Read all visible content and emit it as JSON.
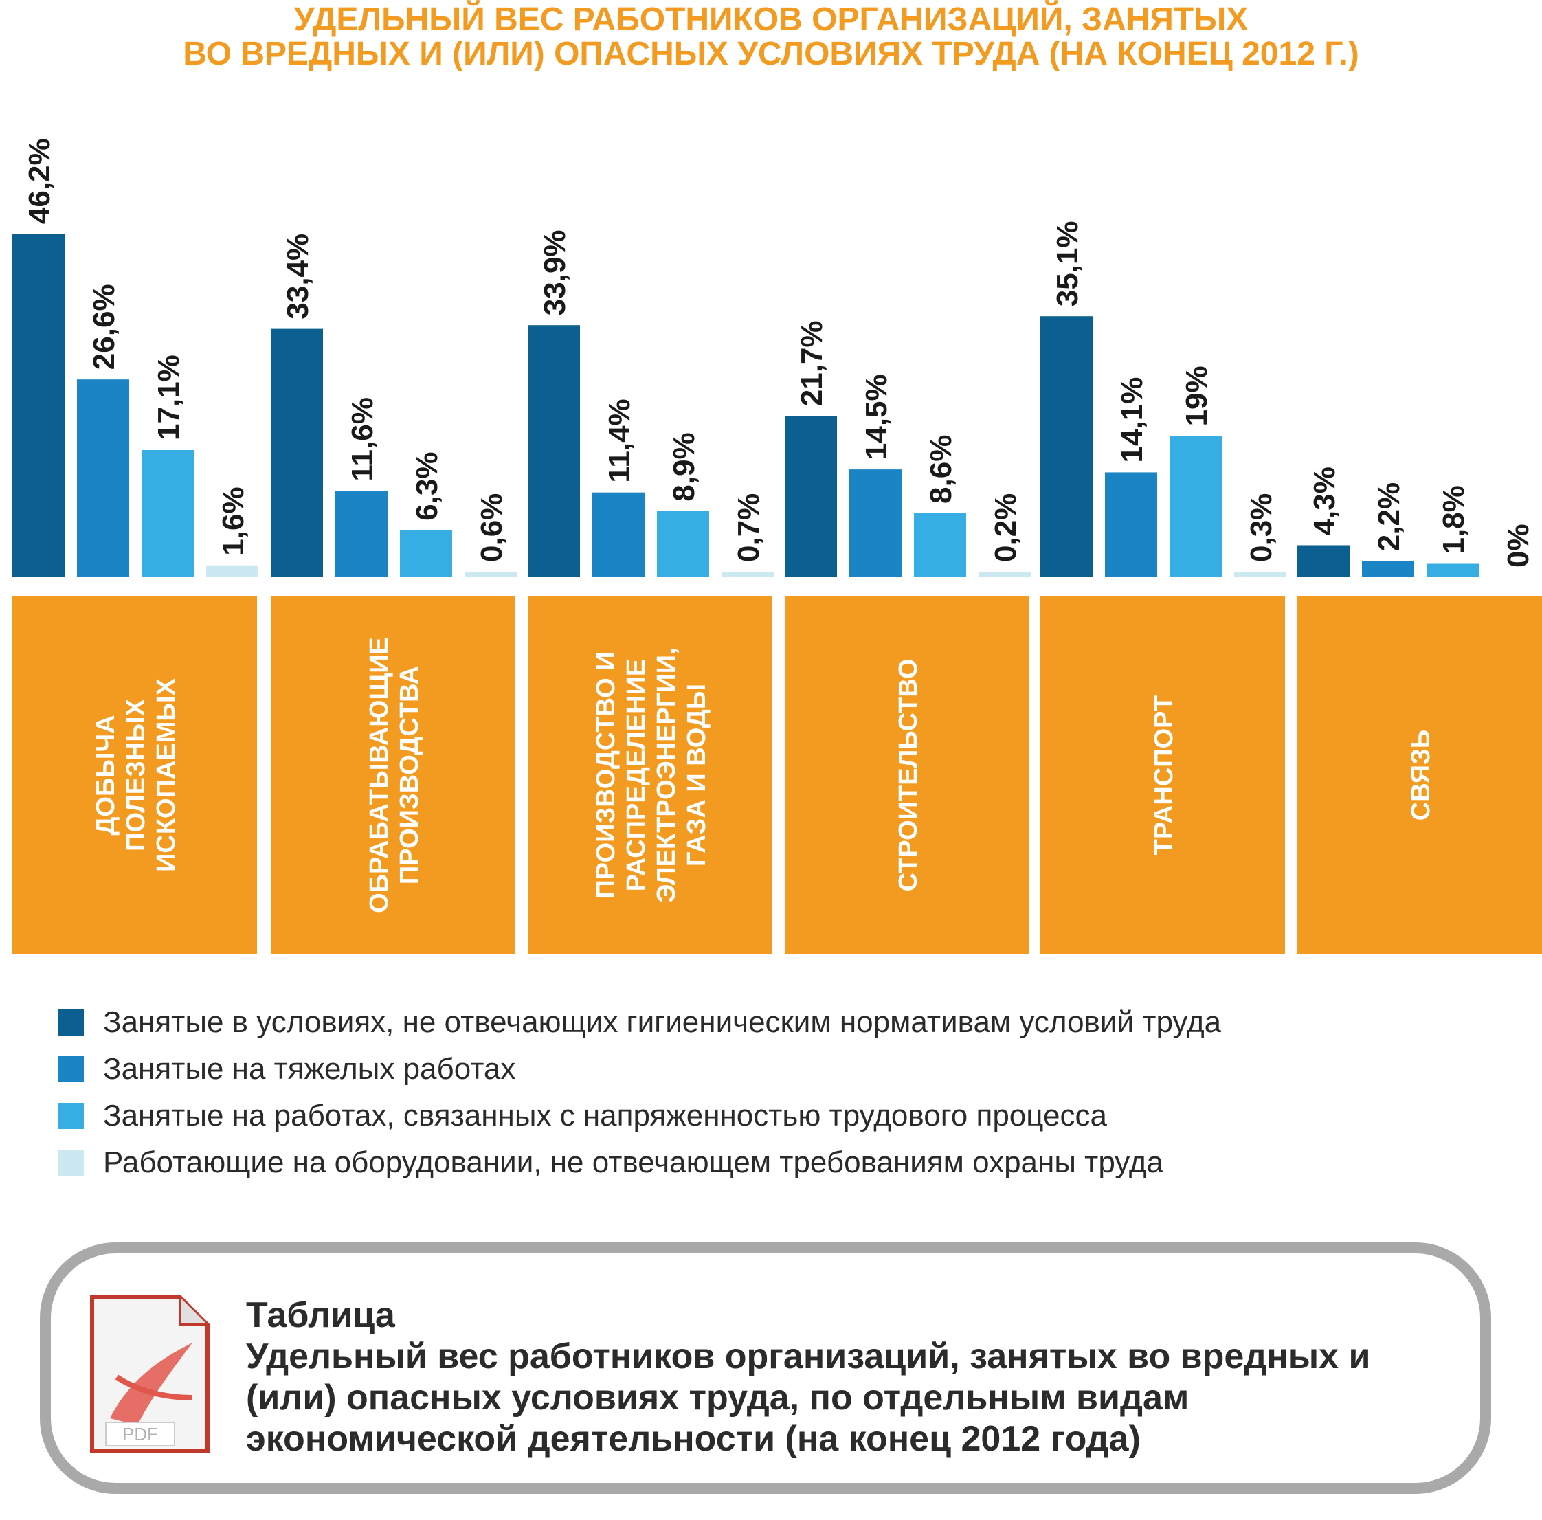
{
  "header": {
    "title_line1": "УДЕЛЬНЫЙ ВЕС РАБОТНИКОВ ОРГАНИЗАЦИЙ, ЗАНЯТЫХ",
    "title_line2": "ВО ВРЕДНЫХ И (ИЛИ) ОПАСНЫХ УСЛОВИЯХ ТРУДА (НА КОНЕЦ 2012 Г.)"
  },
  "colors": {
    "title": "#f39a20",
    "category_panel": "#f39a20",
    "series": [
      "#0b5f91",
      "#1b84c4",
      "#36aee3",
      "#cce9f2"
    ]
  },
  "chart_data": {
    "type": "bar",
    "title": "УДЕЛЬНЫЙ ВЕС РАБОТНИКОВ ОРГАНИЗАЦИЙ, ЗАНЯТЫХ ВО ВРЕДНЫХ И (ИЛИ) ОПАСНЫХ УСЛОВИЯХ ТРУДА (НА КОНЕЦ 2012 Г.)",
    "unit": "%",
    "grid": false,
    "legend_position": "bottom",
    "ylim": [
      0,
      50
    ],
    "categories": [
      [
        "ДОБЫЧА",
        "ПОЛЕЗНЫХ",
        "ИСКОПАЕМЫХ"
      ],
      [
        "ОБРАБАТЫВАЮЩИЕ",
        "ПРОИЗВОДСТВА"
      ],
      [
        "ПРОИЗВОДСТВО И",
        "РАСПРЕДЕЛЕНИЕ",
        "ЭЛЕКТРОЭНЕРГИИ,",
        "ГАЗА И ВОДЫ"
      ],
      [
        "СТРОИТЕЛЬСТВО"
      ],
      [
        "ТРАНСПОРТ"
      ],
      [
        "СВЯЗЬ"
      ]
    ],
    "series": [
      {
        "name": "Занятые в условиях, не отвечающих гигиеническим нормативам условий труда",
        "values": [
          46.2,
          33.4,
          33.9,
          21.7,
          35.1,
          4.3
        ],
        "labels": [
          "46,2%",
          "33,4%",
          "33,9%",
          "21,7%",
          "35,1%",
          "4,3%"
        ]
      },
      {
        "name": "Занятые на тяжелых работах",
        "values": [
          26.6,
          11.6,
          11.4,
          14.5,
          14.1,
          2.2
        ],
        "labels": [
          "26,6%",
          "11,6%",
          "11,4%",
          "14,5%",
          "14,1%",
          "2,2%"
        ]
      },
      {
        "name": "Занятые на работах, связанных с напряженностью трудового процесса",
        "values": [
          17.1,
          6.3,
          8.9,
          8.6,
          19,
          1.8
        ],
        "labels": [
          "17,1%",
          "6,3%",
          "8,9%",
          "8,6%",
          "19%",
          "1,8%"
        ]
      },
      {
        "name": "Работающие на оборудовании, не отвечающем требованиям охраны труда",
        "values": [
          1.6,
          0.6,
          0.7,
          0.2,
          0.3,
          0
        ],
        "labels": [
          "1,6%",
          "0,6%",
          "0,7%",
          "0,2%",
          "0,3%",
          "0%"
        ]
      }
    ]
  },
  "pdf_link": {
    "heading": "Таблица",
    "line1": "Удельный вес работников организаций, занятых во вредных и",
    "line2": "(или) опасных условиях труда, по отдельным видам",
    "line3": "экономической деятельности (на конец 2012 года)",
    "icon_label": "PDF",
    "icon_name": "pdf-file-icon"
  }
}
